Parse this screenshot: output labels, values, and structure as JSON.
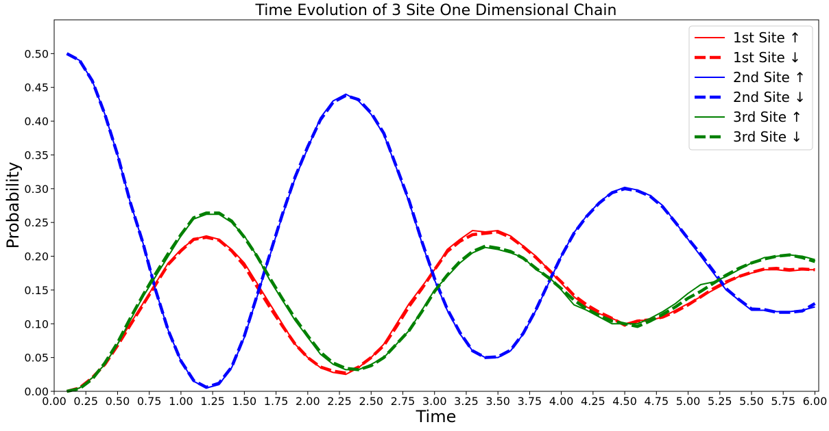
{
  "chart_data": {
    "type": "line",
    "title": "Time Evolution of 3 Site One Dimensional Chain",
    "xlabel": "Time",
    "ylabel": "Probability",
    "xlim": [
      0.0,
      6.03
    ],
    "ylim": [
      0.0,
      0.55
    ],
    "xticks": [
      "0.00",
      "0.25",
      "0.50",
      "0.75",
      "1.00",
      "1.25",
      "1.50",
      "1.75",
      "2.00",
      "2.25",
      "2.50",
      "2.75",
      "3.00",
      "3.25",
      "3.50",
      "3.75",
      "4.00",
      "4.25",
      "4.50",
      "4.75",
      "5.00",
      "5.25",
      "5.50",
      "5.75",
      "6.00"
    ],
    "yticks": [
      "0.00",
      "0.05",
      "0.10",
      "0.15",
      "0.20",
      "0.25",
      "0.30",
      "0.35",
      "0.40",
      "0.45",
      "0.50"
    ],
    "grid": false,
    "legend_position": "top-right",
    "x": [
      0.1,
      0.2,
      0.3,
      0.4,
      0.5,
      0.6,
      0.7,
      0.8,
      0.9,
      1.0,
      1.1,
      1.2,
      1.3,
      1.4,
      1.5,
      1.6,
      1.7,
      1.8,
      1.9,
      2.0,
      2.1,
      2.2,
      2.3,
      2.4,
      2.5,
      2.6,
      2.7,
      2.8,
      2.9,
      3.0,
      3.1,
      3.2,
      3.3,
      3.4,
      3.5,
      3.6,
      3.7,
      3.8,
      3.9,
      4.0,
      4.1,
      4.2,
      4.3,
      4.4,
      4.5,
      4.6,
      4.7,
      4.8,
      4.9,
      5.0,
      5.1,
      5.2,
      5.3,
      5.4,
      5.5,
      5.6,
      5.7,
      5.8,
      5.9,
      6.0
    ],
    "series": [
      {
        "name": "1st Site ↑",
        "color": "#ff0000",
        "style": "solid",
        "values": [
          0.0,
          0.005,
          0.02,
          0.04,
          0.07,
          0.1,
          0.13,
          0.16,
          0.19,
          0.21,
          0.225,
          0.23,
          0.225,
          0.21,
          0.19,
          0.16,
          0.13,
          0.1,
          0.07,
          0.05,
          0.035,
          0.028,
          0.025,
          0.035,
          0.05,
          0.07,
          0.1,
          0.13,
          0.155,
          0.18,
          0.21,
          0.225,
          0.238,
          0.236,
          0.238,
          0.23,
          0.215,
          0.2,
          0.18,
          0.16,
          0.14,
          0.125,
          0.115,
          0.108,
          0.1,
          0.105,
          0.105,
          0.11,
          0.12,
          0.13,
          0.14,
          0.15,
          0.16,
          0.17,
          0.175,
          0.18,
          0.18,
          0.178,
          0.18,
          0.18
        ]
      },
      {
        "name": "1st Site ↓",
        "color": "#ff0000",
        "style": "dashed",
        "values": [
          0.0,
          0.005,
          0.02,
          0.04,
          0.068,
          0.098,
          0.128,
          0.158,
          0.188,
          0.208,
          0.225,
          0.228,
          0.224,
          0.208,
          0.186,
          0.155,
          0.125,
          0.097,
          0.07,
          0.05,
          0.036,
          0.03,
          0.027,
          0.036,
          0.05,
          0.068,
          0.096,
          0.126,
          0.152,
          0.18,
          0.207,
          0.222,
          0.232,
          0.234,
          0.236,
          0.228,
          0.214,
          0.198,
          0.18,
          0.162,
          0.142,
          0.128,
          0.117,
          0.108,
          0.098,
          0.104,
          0.106,
          0.11,
          0.118,
          0.128,
          0.14,
          0.152,
          0.162,
          0.17,
          0.176,
          0.181,
          0.182,
          0.18,
          0.181,
          0.18
        ]
      },
      {
        "name": "2nd Site ↑",
        "color": "#0000ff",
        "style": "solid",
        "values": [
          0.5,
          0.49,
          0.46,
          0.41,
          0.35,
          0.28,
          0.22,
          0.15,
          0.09,
          0.045,
          0.015,
          0.005,
          0.01,
          0.035,
          0.08,
          0.14,
          0.2,
          0.26,
          0.315,
          0.36,
          0.405,
          0.43,
          0.44,
          0.43,
          0.41,
          0.38,
          0.33,
          0.28,
          0.22,
          0.165,
          0.12,
          0.085,
          0.06,
          0.05,
          0.05,
          0.06,
          0.085,
          0.12,
          0.16,
          0.2,
          0.235,
          0.26,
          0.28,
          0.295,
          0.302,
          0.298,
          0.29,
          0.275,
          0.25,
          0.225,
          0.2,
          0.175,
          0.15,
          0.135,
          0.12,
          0.12,
          0.118,
          0.118,
          0.12,
          0.125
        ]
      },
      {
        "name": "2nd Site ↓",
        "color": "#0000ff",
        "style": "dashed",
        "values": [
          0.5,
          0.49,
          0.46,
          0.41,
          0.35,
          0.28,
          0.22,
          0.15,
          0.09,
          0.045,
          0.016,
          0.006,
          0.012,
          0.036,
          0.082,
          0.142,
          0.202,
          0.262,
          0.317,
          0.362,
          0.402,
          0.428,
          0.438,
          0.432,
          0.412,
          0.382,
          0.332,
          0.282,
          0.222,
          0.167,
          0.122,
          0.087,
          0.06,
          0.05,
          0.051,
          0.061,
          0.086,
          0.121,
          0.161,
          0.2,
          0.234,
          0.259,
          0.279,
          0.294,
          0.3,
          0.297,
          0.289,
          0.273,
          0.25,
          0.226,
          0.203,
          0.178,
          0.152,
          0.136,
          0.122,
          0.121,
          0.117,
          0.117,
          0.119,
          0.13
        ]
      },
      {
        "name": "3rd Site ↑",
        "color": "#008000",
        "style": "solid",
        "values": [
          0.0,
          0.005,
          0.02,
          0.04,
          0.07,
          0.105,
          0.14,
          0.17,
          0.2,
          0.23,
          0.255,
          0.262,
          0.262,
          0.25,
          0.23,
          0.2,
          0.165,
          0.135,
          0.105,
          0.08,
          0.055,
          0.04,
          0.032,
          0.032,
          0.04,
          0.05,
          0.07,
          0.09,
          0.12,
          0.15,
          0.17,
          0.19,
          0.205,
          0.213,
          0.21,
          0.205,
          0.198,
          0.18,
          0.17,
          0.15,
          0.128,
          0.12,
          0.11,
          0.1,
          0.1,
          0.1,
          0.108,
          0.118,
          0.13,
          0.145,
          0.158,
          0.162,
          0.17,
          0.18,
          0.19,
          0.198,
          0.2,
          0.202,
          0.2,
          0.195
        ]
      },
      {
        "name": "3rd Site ↓",
        "color": "#008000",
        "style": "dashed",
        "values": [
          0.0,
          0.004,
          0.018,
          0.042,
          0.072,
          0.108,
          0.142,
          0.174,
          0.204,
          0.232,
          0.257,
          0.264,
          0.264,
          0.252,
          0.228,
          0.2,
          0.168,
          0.137,
          0.108,
          0.082,
          0.058,
          0.042,
          0.034,
          0.032,
          0.038,
          0.05,
          0.07,
          0.09,
          0.118,
          0.148,
          0.172,
          0.192,
          0.207,
          0.215,
          0.212,
          0.207,
          0.197,
          0.182,
          0.168,
          0.152,
          0.135,
          0.122,
          0.112,
          0.104,
          0.1,
          0.096,
          0.104,
          0.114,
          0.125,
          0.138,
          0.148,
          0.16,
          0.172,
          0.182,
          0.19,
          0.196,
          0.2,
          0.202,
          0.198,
          0.192
        ]
      }
    ]
  }
}
